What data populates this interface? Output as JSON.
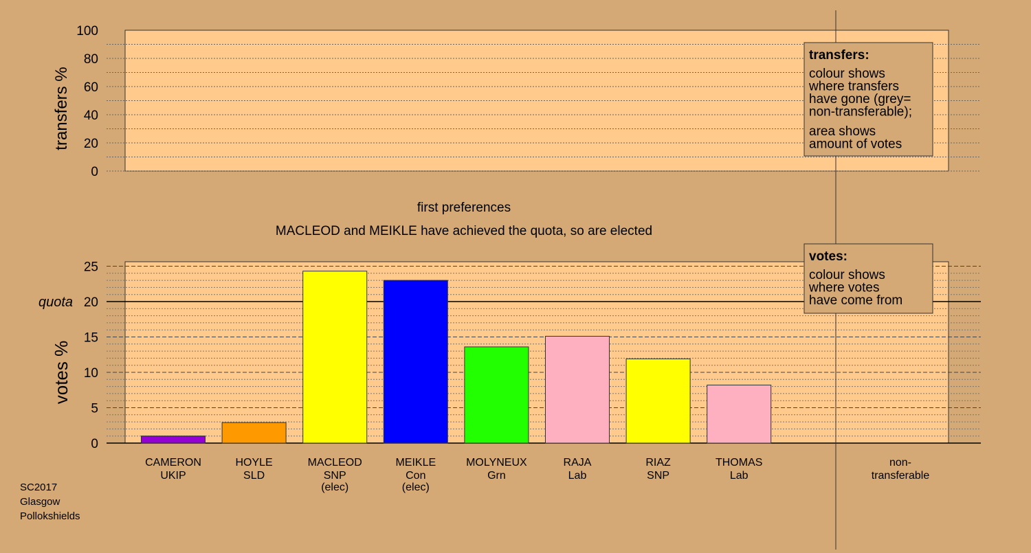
{
  "colors": {
    "background": "#d4a976",
    "plot_fill": "#ffca8c"
  },
  "chart_data": [
    {
      "type": "bar",
      "panel": "transfers",
      "ylabel": "transfers %",
      "ylim": [
        0,
        100
      ],
      "yticks": [
        0,
        20,
        40,
        60,
        80,
        100
      ],
      "grid": true,
      "values": [],
      "legend": {
        "placement": "top-right",
        "title": "transfers:",
        "lines_a": [
          "colour shows",
          "where transfers",
          "have gone (grey=",
          "non-transferable);"
        ],
        "lines_b": [
          "area shows",
          "amount of votes"
        ]
      }
    },
    {
      "type": "bar",
      "panel": "votes",
      "title": "first preferences",
      "subtitle": "MACLEOD and MEIKLE have achieved the quota, so are elected",
      "ylabel": "votes %",
      "ylim": [
        0,
        25
      ],
      "yticks": [
        0,
        5,
        10,
        15,
        20,
        25
      ],
      "quota_label": "quota",
      "quota": 20,
      "grid": true,
      "categories": [
        {
          "name": "CAMERON",
          "party": "UKIP",
          "note": ""
        },
        {
          "name": "HOYLE",
          "party": "SLD",
          "note": ""
        },
        {
          "name": "MACLEOD",
          "party": "SNP",
          "note": "(elec)"
        },
        {
          "name": "MEIKLE",
          "party": "Con",
          "note": "(elec)"
        },
        {
          "name": "MOLYNEUX",
          "party": "Grn",
          "note": ""
        },
        {
          "name": "RAJA",
          "party": "Lab",
          "note": ""
        },
        {
          "name": "RIAZ",
          "party": "SNP",
          "note": ""
        },
        {
          "name": "THOMAS",
          "party": "Lab",
          "note": ""
        }
      ],
      "values": [
        1.0,
        2.9,
        24.3,
        23.0,
        13.6,
        15.1,
        11.9,
        8.2
      ],
      "bar_colors": [
        "#9400d3",
        "#ff9900",
        "#ffff00",
        "#0000ff",
        "#22ff00",
        "#ffb0c0",
        "#ffff00",
        "#ffb0c0"
      ],
      "nontransferable_label": [
        "non-",
        "transferable"
      ],
      "legend": {
        "placement": "top-right",
        "title": "votes:",
        "lines_a": [
          "colour shows",
          "where votes",
          "have come from"
        ]
      }
    }
  ],
  "footer": {
    "lines": [
      "SC2017",
      "Glasgow",
      "Pollokshields"
    ]
  }
}
